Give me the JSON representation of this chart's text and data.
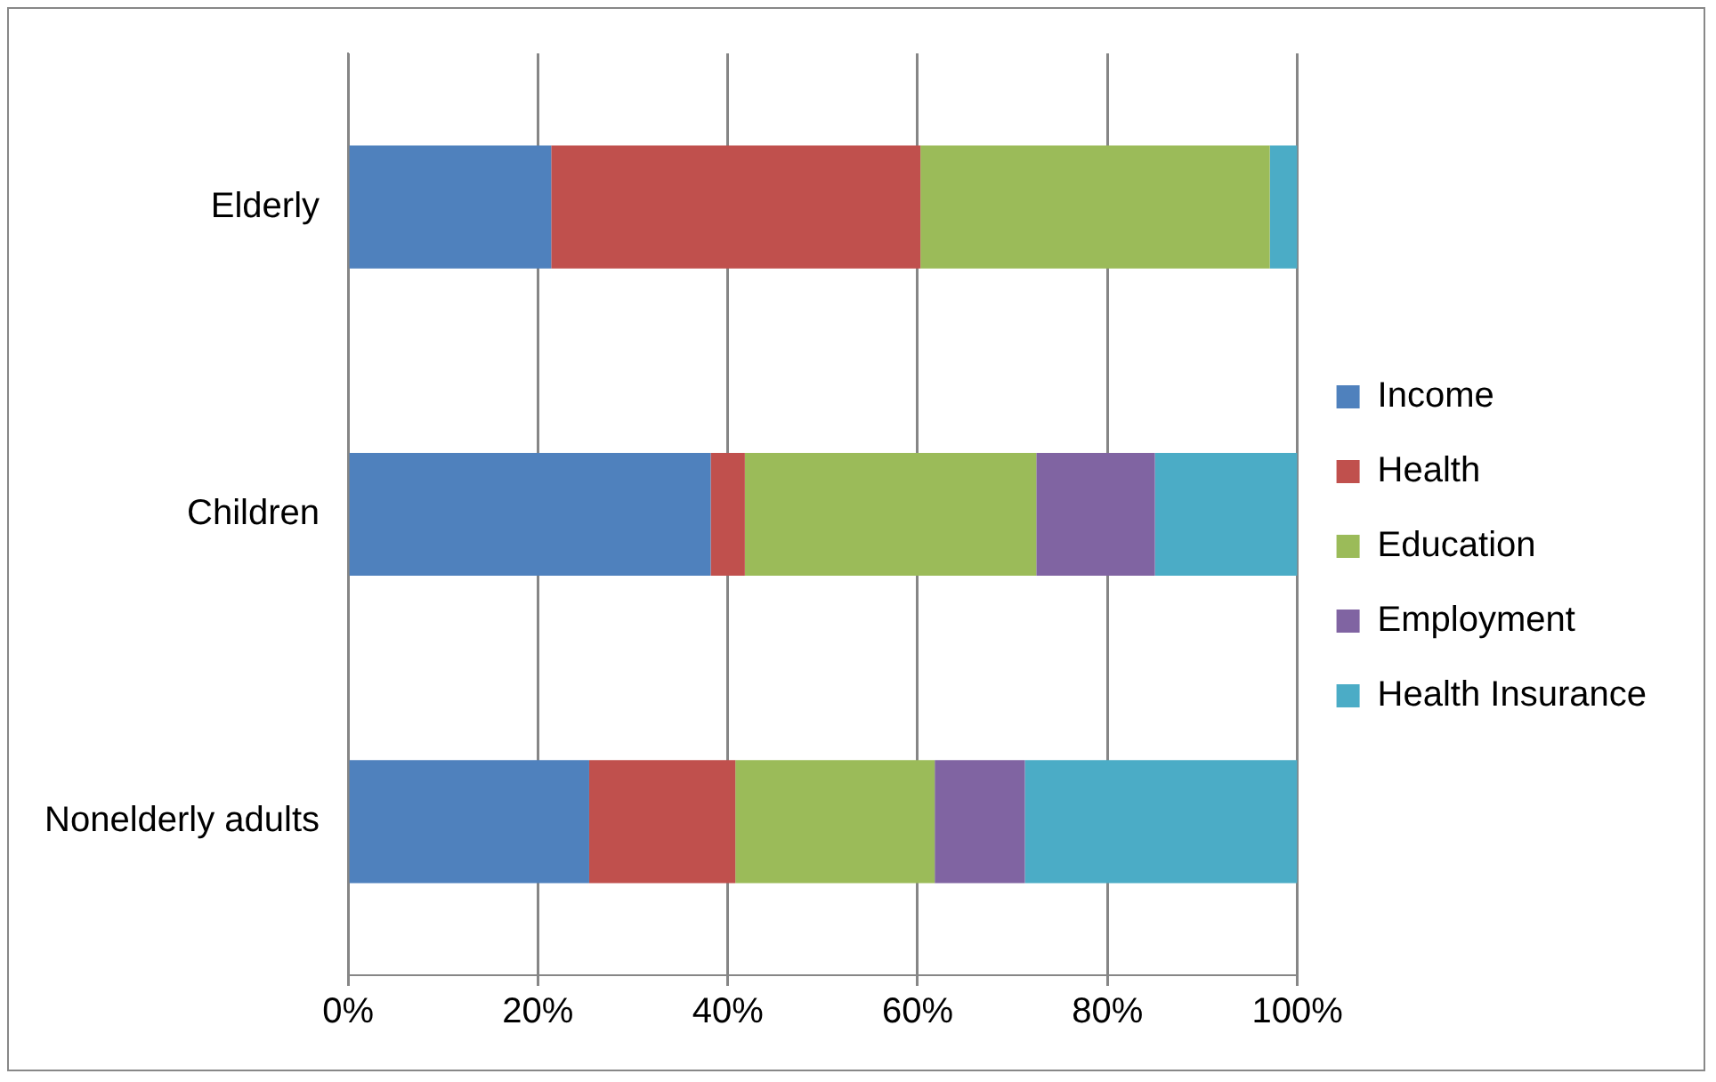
{
  "chart_data": {
    "type": "bar",
    "orientation": "horizontal",
    "stacked": true,
    "categories": [
      "Elderly",
      "Children",
      "Nonelderly adults"
    ],
    "series": [
      {
        "name": "Income",
        "color": "#4f81bd",
        "values": [
          21.4,
          38.2,
          25.4
        ]
      },
      {
        "name": "Health",
        "color": "#c0504d",
        "values": [
          38.9,
          3.6,
          15.4
        ]
      },
      {
        "name": "Education",
        "color": "#9bbb59",
        "values": [
          36.8,
          30.7,
          21.0
        ]
      },
      {
        "name": "Employment",
        "color": "#8064a2",
        "values": [
          0,
          12.5,
          9.5
        ]
      },
      {
        "name": "Health Insurance",
        "color": "#4bacc6",
        "values": [
          2.9,
          15.0,
          28.7
        ]
      }
    ],
    "xlim": [
      0,
      100
    ],
    "xticks": [
      {
        "value": 0,
        "label": "0%"
      },
      {
        "value": 20,
        "label": "20%"
      },
      {
        "value": 40,
        "label": "40%"
      },
      {
        "value": 60,
        "label": "60%"
      },
      {
        "value": 80,
        "label": "80%"
      },
      {
        "value": 100,
        "label": "100%"
      }
    ],
    "grid": "x",
    "legend": "right"
  }
}
